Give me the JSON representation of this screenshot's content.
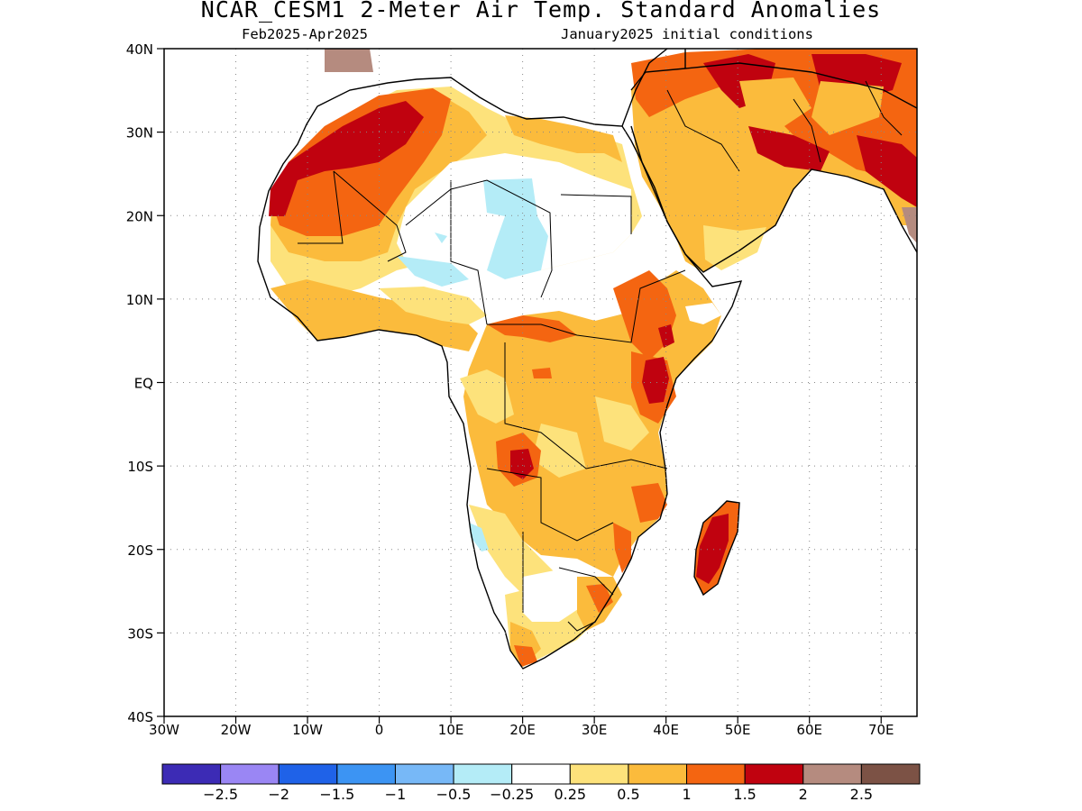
{
  "header": {
    "title": "NCAR_CESM1 2-Meter Air Temp. Standard Anomalies",
    "period": "Feb2025-Apr2025",
    "init": "January2025 initial conditions"
  },
  "axes": {
    "lat_labels": [
      "40N",
      "30N",
      "20N",
      "10N",
      "EQ",
      "10S",
      "20S",
      "30S",
      "40S"
    ],
    "lon_labels": [
      "30W",
      "20W",
      "10W",
      "0",
      "10E",
      "20E",
      "30E",
      "40E",
      "50E",
      "60E",
      "70E"
    ],
    "lat_range": [
      -40,
      40
    ],
    "lon_range": [
      -30,
      75
    ],
    "gridlines": "dotted"
  },
  "colorbar": {
    "colors": [
      "#3c2bb5",
      "#9a86f4",
      "#1f62e8",
      "#3c94f3",
      "#77b8f7",
      "#b4ecf7",
      "#ffffff",
      "#fde27b",
      "#fbbb3c",
      "#f46511",
      "#c0020f",
      "#b58b7f",
      "#7c5245"
    ],
    "labels": [
      "-2.5",
      "-2",
      "-1.5",
      "-1",
      "-0.5",
      "-0.25",
      "0.25",
      "0.5",
      "1",
      "1.5",
      "2",
      "2.5"
    ]
  },
  "regions": [
    {
      "name": "Morocco-Sahara",
      "level": 2
    },
    {
      "name": "Northwest Africa",
      "level": 1.5
    },
    {
      "name": "Sahel",
      "level": 0.5
    },
    {
      "name": "Central Sahara",
      "level": -0.25
    },
    {
      "name": "Arabia",
      "level": 1
    },
    {
      "name": "Middle East north",
      "level": 1.5
    },
    {
      "name": "Central Africa",
      "level": 1
    },
    {
      "name": "Kenya-Ethiopia",
      "level": 1.5
    },
    {
      "name": "Zambia",
      "level": 2
    },
    {
      "name": "Madagascar",
      "level": 2
    },
    {
      "name": "Southern Africa coast",
      "level": 1
    }
  ]
}
